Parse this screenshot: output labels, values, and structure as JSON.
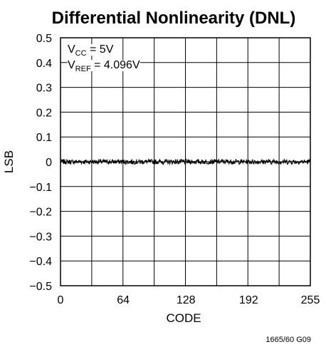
{
  "chart_data": {
    "type": "line",
    "title": "Differential Nonlinearity (DNL)",
    "xlabel": "CODE",
    "ylabel": "LSB",
    "xlim": [
      0,
      255
    ],
    "ylim": [
      -0.5,
      0.5
    ],
    "x_ticks": [
      0,
      64,
      128,
      192,
      255
    ],
    "y_ticks": [
      0.5,
      0.4,
      0.3,
      0.2,
      0.1,
      0,
      -0.1,
      -0.2,
      -0.3,
      -0.4,
      -0.5
    ],
    "y_tick_labels": [
      "0.5",
      "0.4",
      "0.3",
      "0.2",
      "0.1",
      "0",
      "−0.1",
      "−0.2",
      "−0.3",
      "−0.4",
      "−0.5"
    ],
    "grid": true,
    "series": [
      {
        "color": "#000000",
        "noise_amplitude_lsb": 0.01,
        "mean": 0
      }
    ],
    "annotations": {
      "vcc": {
        "symbol": "V",
        "sub": "CC",
        "rest": " = 5V"
      },
      "vref": {
        "symbol": "V",
        "sub": "REF",
        "rest": " = 4.096V"
      }
    },
    "figure_id": "1665/60 G09"
  }
}
